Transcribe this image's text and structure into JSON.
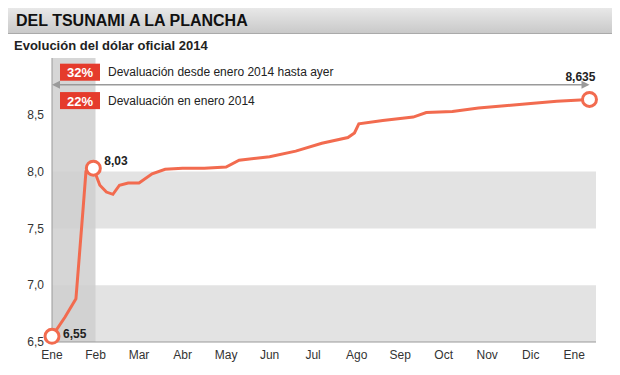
{
  "chart_data": {
    "type": "line",
    "title": "DEL TSUNAMI A LA PLANCHA",
    "subtitle": "Evolución del dólar oficial 2014",
    "color": "#f26b4f",
    "x": [
      0,
      0.3,
      0.55,
      0.72,
      0.78,
      0.95,
      1.1,
      1.25,
      1.4,
      1.55,
      1.75,
      2.0,
      2.3,
      2.6,
      3.0,
      3.5,
      4.0,
      4.3,
      5.0,
      5.6,
      6.2,
      6.8,
      6.95,
      7.05,
      7.6,
      8.3,
      8.6,
      9.2,
      9.8,
      10.4,
      11.0,
      11.6,
      12.35
    ],
    "values": [
      6.55,
      6.72,
      6.88,
      7.7,
      8.0,
      8.03,
      7.88,
      7.82,
      7.8,
      7.88,
      7.9,
      7.9,
      7.98,
      8.02,
      8.03,
      8.03,
      8.04,
      8.1,
      8.13,
      8.18,
      8.25,
      8.3,
      8.34,
      8.42,
      8.45,
      8.48,
      8.52,
      8.53,
      8.56,
      8.58,
      8.6,
      8.62,
      8.635
    ],
    "xlim": [
      0,
      12.5
    ],
    "xticks": [
      {
        "value": 0,
        "label": "Ene"
      },
      {
        "value": 1,
        "label": "Feb"
      },
      {
        "value": 2,
        "label": "Mar"
      },
      {
        "value": 3,
        "label": "Abr"
      },
      {
        "value": 4,
        "label": "May"
      },
      {
        "value": 5,
        "label": "Jun"
      },
      {
        "value": 6,
        "label": "Jul"
      },
      {
        "value": 7,
        "label": "Ago"
      },
      {
        "value": 8,
        "label": "Sep"
      },
      {
        "value": 9,
        "label": "Oct"
      },
      {
        "value": 10,
        "label": "Nov"
      },
      {
        "value": 11,
        "label": "Dic"
      },
      {
        "value": 12,
        "label": "Ene"
      }
    ],
    "ylim": [
      6.5,
      9.0
    ],
    "yticks": [
      {
        "value": 6.5,
        "label": "6,5"
      },
      {
        "value": 7.0,
        "label": "7,0"
      },
      {
        "value": 7.5,
        "label": "7,5"
      },
      {
        "value": 8.0,
        "label": "8,0"
      },
      {
        "value": 8.5,
        "label": "8,5"
      }
    ],
    "grid": true,
    "annotations": [
      {
        "badge": "32%",
        "text": "Devaluación desde enero 2014 hasta ayer",
        "x": [
          0,
          12.35
        ]
      },
      {
        "badge": "22%",
        "text": "Devaluación en enero 2014",
        "x": [
          0,
          1
        ]
      }
    ],
    "point_labels": [
      {
        "x": 0,
        "y": 6.55,
        "label": "6,55"
      },
      {
        "x": 0.95,
        "y": 8.03,
        "label": "8,03"
      },
      {
        "x": 12.35,
        "y": 8.635,
        "label": "8,635"
      }
    ]
  }
}
